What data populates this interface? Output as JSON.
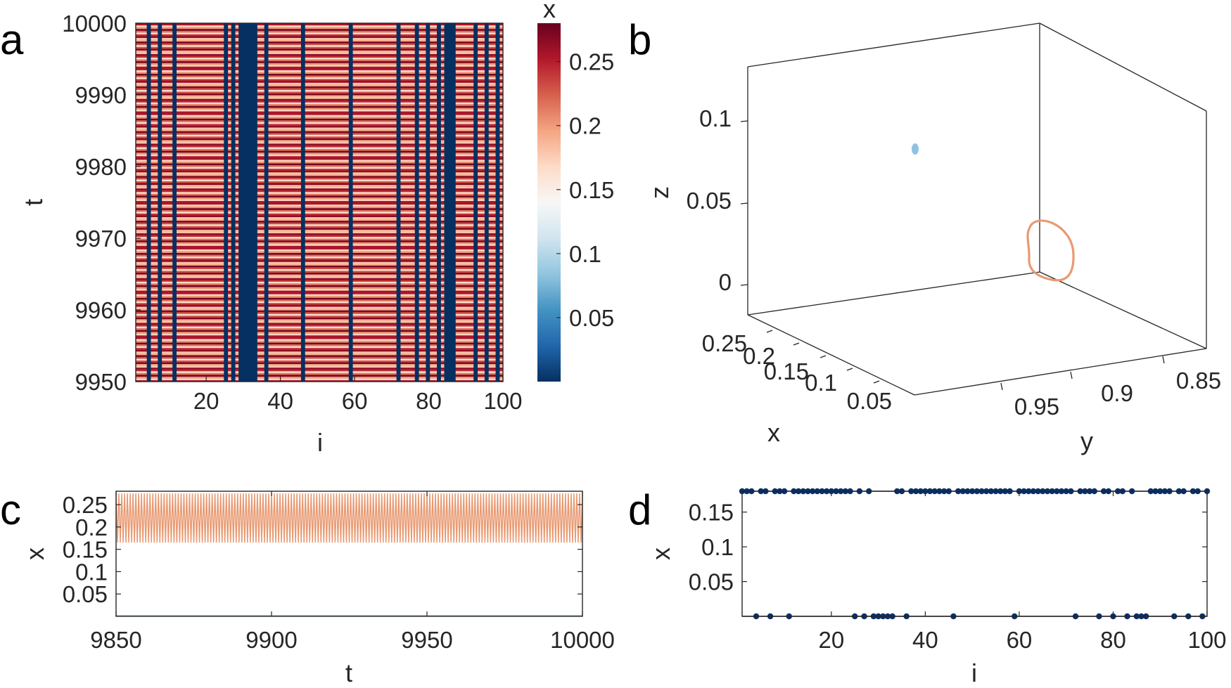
{
  "panels": {
    "a": {
      "label": "a",
      "chart_data": {
        "type": "heatmap",
        "xlabel": "i",
        "ylabel": "t",
        "colorbar_label": "x",
        "xlim": [
          1,
          100
        ],
        "ylim": [
          9950,
          10000
        ],
        "x_ticks": [
          "20",
          "40",
          "60",
          "80",
          "100"
        ],
        "y_ticks": [
          "9950",
          "9960",
          "9970",
          "9980",
          "9990",
          "10000"
        ],
        "colorbar_ticks": [
          "0.05",
          "0.1",
          "0.15",
          "0.2",
          "0.25"
        ],
        "colorbar_range": [
          0,
          0.28
        ],
        "colormap": [
          "#053061",
          "#2166ac",
          "#4393c3",
          "#92c5de",
          "#d1e5f0",
          "#f7f7f7",
          "#fddbc7",
          "#f4a582",
          "#d6604d",
          "#b2182b",
          "#67001f"
        ],
        "low_state_nodes": [
          4,
          7,
          11,
          25,
          27,
          29,
          30,
          31,
          32,
          33,
          36,
          46,
          59,
          72,
          77,
          80,
          83,
          85,
          86,
          87,
          93,
          96,
          99
        ],
        "low_state_value": 0,
        "oscillation_band_x": [
          0.165,
          0.275
        ],
        "oscillation_cycles_in_window": 56
      }
    },
    "b": {
      "label": "b",
      "chart_data": {
        "type": "line3d",
        "xlabel": "x",
        "ylabel": "y",
        "zlabel": "z",
        "x_ticks": [
          "0.25",
          "0.2",
          "0.15",
          "0.1",
          "0.05"
        ],
        "y_ticks": [
          "0.95",
          "0.9",
          "0.85"
        ],
        "z_ticks": [
          "0",
          "0.05",
          "0.1"
        ],
        "series": [
          {
            "kind": "fixed point",
            "color": "#8fc1e3",
            "x": 0.001,
            "y": 0.99,
            "z": 0.083
          },
          {
            "kind": "limit cycle",
            "color": "#e89a72",
            "x_range": [
              0.165,
              0.275
            ],
            "y_range": [
              0.86,
              0.92
            ],
            "z_range": [
              0.005,
              0.035
            ]
          }
        ]
      }
    },
    "c": {
      "label": "c",
      "chart_data": {
        "type": "line",
        "xlabel": "t",
        "ylabel": "x",
        "xlim": [
          9850,
          10000
        ],
        "ylim": [
          0,
          0.28
        ],
        "x_ticks": [
          "9850",
          "9900",
          "9950",
          "10000"
        ],
        "y_ticks": [
          "0.05",
          "0.1",
          "0.15",
          "0.2",
          "0.25"
        ],
        "series": [
          {
            "color": "#e89a72",
            "min": 0.165,
            "max": 0.275,
            "cycles": 165
          },
          {
            "color": "#8fc1e3",
            "value": 0.001
          }
        ]
      }
    },
    "d": {
      "label": "d",
      "chart_data": {
        "type": "scatter",
        "xlabel": "i",
        "ylabel": "x",
        "xlim": [
          1,
          100
        ],
        "ylim": [
          0,
          0.18
        ],
        "x_ticks": [
          "20",
          "40",
          "60",
          "80",
          "100"
        ],
        "y_ticks": [
          "0.05",
          "0.1",
          "0.15"
        ],
        "marker_color": "#08306b",
        "high_value": 0.18,
        "low_value": 0.0,
        "high_nodes": [
          1,
          2,
          3,
          5,
          6,
          8,
          9,
          10,
          12,
          13,
          14,
          15,
          16,
          17,
          18,
          19,
          20,
          21,
          22,
          23,
          24,
          26,
          28,
          34,
          35,
          37,
          38,
          39,
          40,
          41,
          42,
          43,
          44,
          45,
          47,
          48,
          49,
          50,
          51,
          52,
          53,
          54,
          55,
          56,
          57,
          58,
          60,
          61,
          62,
          63,
          64,
          65,
          66,
          67,
          68,
          69,
          70,
          71,
          73,
          74,
          75,
          76,
          78,
          79,
          81,
          82,
          84,
          88,
          89,
          90,
          91,
          92,
          94,
          95,
          97,
          98,
          100
        ],
        "low_nodes": [
          4,
          7,
          11,
          25,
          27,
          29,
          30,
          31,
          32,
          33,
          36,
          46,
          59,
          72,
          77,
          80,
          83,
          85,
          86,
          87,
          93,
          96,
          99
        ]
      }
    }
  }
}
